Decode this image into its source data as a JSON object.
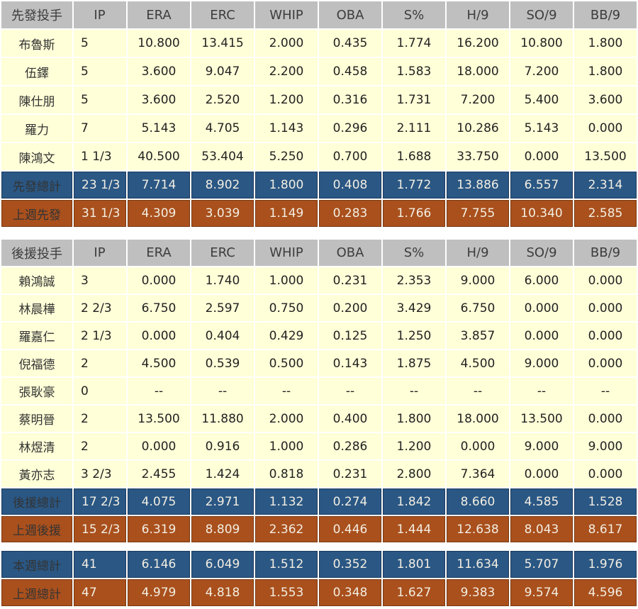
{
  "colors": {
    "header_bg": "#BFBFBF",
    "data_row_bg": "#FFFFD8",
    "total_row_bg": "#2A5784",
    "last_week_row_bg": "#A9501D",
    "summary_text": "#F3EEE2",
    "cell_text": "#222222"
  },
  "chart_data": {
    "type": "table",
    "tables": [
      {
        "title": "先發投手",
        "has_header": true,
        "columns": [
          "IP",
          "ERA",
          "ERC",
          "WHIP",
          "OBA",
          "S%",
          "H/9",
          "SO/9",
          "BB/9"
        ],
        "rows": [
          {
            "name": "布魯斯",
            "values": [
              "5",
              "10.800",
              "13.415",
              "2.000",
              "0.435",
              "1.774",
              "16.200",
              "10.800",
              "1.800"
            ]
          },
          {
            "name": "伍鐸",
            "values": [
              "5",
              "3.600",
              "9.047",
              "2.200",
              "0.458",
              "1.583",
              "18.000",
              "7.200",
              "1.800"
            ]
          },
          {
            "name": "陳仕朋",
            "values": [
              "5",
              "3.600",
              "2.520",
              "1.200",
              "0.316",
              "1.731",
              "7.200",
              "5.400",
              "3.600"
            ]
          },
          {
            "name": "羅力",
            "values": [
              "7",
              "5.143",
              "4.705",
              "1.143",
              "0.296",
              "2.111",
              "10.286",
              "5.143",
              "0.000"
            ]
          },
          {
            "name": "陳鴻文",
            "values": [
              "1 1/3",
              "40.500",
              "53.404",
              "5.250",
              "0.700",
              "1.688",
              "33.750",
              "0.000",
              "13.500"
            ]
          }
        ],
        "total": {
          "name": "先發總計",
          "values": [
            "23 1/3",
            "7.714",
            "8.902",
            "1.800",
            "0.408",
            "1.772",
            "13.886",
            "6.557",
            "2.314"
          ]
        },
        "last_week": {
          "name": "上週先發",
          "values": [
            "31 1/3",
            "4.309",
            "3.039",
            "1.149",
            "0.283",
            "1.766",
            "7.755",
            "10.340",
            "2.585"
          ]
        }
      },
      {
        "title": "後援投手",
        "has_header": true,
        "columns": [
          "IP",
          "ERA",
          "ERC",
          "WHIP",
          "OBA",
          "S%",
          "H/9",
          "SO/9",
          "BB/9"
        ],
        "rows": [
          {
            "name": "賴鴻誠",
            "values": [
              "3",
              "0.000",
              "1.740",
              "1.000",
              "0.231",
              "2.353",
              "9.000",
              "6.000",
              "0.000"
            ]
          },
          {
            "name": "林晨樺",
            "values": [
              "2 2/3",
              "6.750",
              "2.597",
              "0.750",
              "0.200",
              "3.429",
              "6.750",
              "0.000",
              "0.000"
            ]
          },
          {
            "name": "羅嘉仁",
            "values": [
              "2 1/3",
              "0.000",
              "0.404",
              "0.429",
              "0.125",
              "1.250",
              "3.857",
              "0.000",
              "0.000"
            ]
          },
          {
            "name": "倪福德",
            "values": [
              "2",
              "4.500",
              "0.539",
              "0.500",
              "0.143",
              "1.875",
              "4.500",
              "9.000",
              "0.000"
            ]
          },
          {
            "name": "張耿豪",
            "values": [
              "0",
              "--",
              "--",
              "--",
              "--",
              "--",
              "--",
              "--",
              "--"
            ]
          },
          {
            "name": "蔡明晉",
            "values": [
              "2",
              "13.500",
              "11.880",
              "2.000",
              "0.400",
              "1.800",
              "18.000",
              "13.500",
              "0.000"
            ]
          },
          {
            "name": "林煜清",
            "values": [
              "2",
              "0.000",
              "0.916",
              "1.000",
              "0.286",
              "1.200",
              "0.000",
              "9.000",
              "9.000"
            ]
          },
          {
            "name": "黃亦志",
            "values": [
              "3 2/3",
              "2.455",
              "1.424",
              "0.818",
              "0.231",
              "2.800",
              "7.364",
              "0.000",
              "0.000"
            ]
          }
        ],
        "total": {
          "name": "後援總計",
          "values": [
            "17 2/3",
            "4.075",
            "2.971",
            "1.132",
            "0.274",
            "1.842",
            "8.660",
            "4.585",
            "1.528"
          ]
        },
        "last_week": {
          "name": "上週後援",
          "values": [
            "15 2/3",
            "6.319",
            "8.809",
            "2.362",
            "0.446",
            "1.444",
            "12.638",
            "8.043",
            "8.617"
          ]
        }
      },
      {
        "title": "",
        "has_header": false,
        "columns": [],
        "rows": [],
        "total": {
          "name": "本週總計",
          "values": [
            "41",
            "6.146",
            "6.049",
            "1.512",
            "0.352",
            "1.801",
            "11.634",
            "5.707",
            "1.976"
          ]
        },
        "last_week": {
          "name": "上週總計",
          "values": [
            "47",
            "4.979",
            "4.818",
            "1.553",
            "0.348",
            "1.627",
            "9.383",
            "9.574",
            "4.596"
          ]
        }
      }
    ]
  }
}
